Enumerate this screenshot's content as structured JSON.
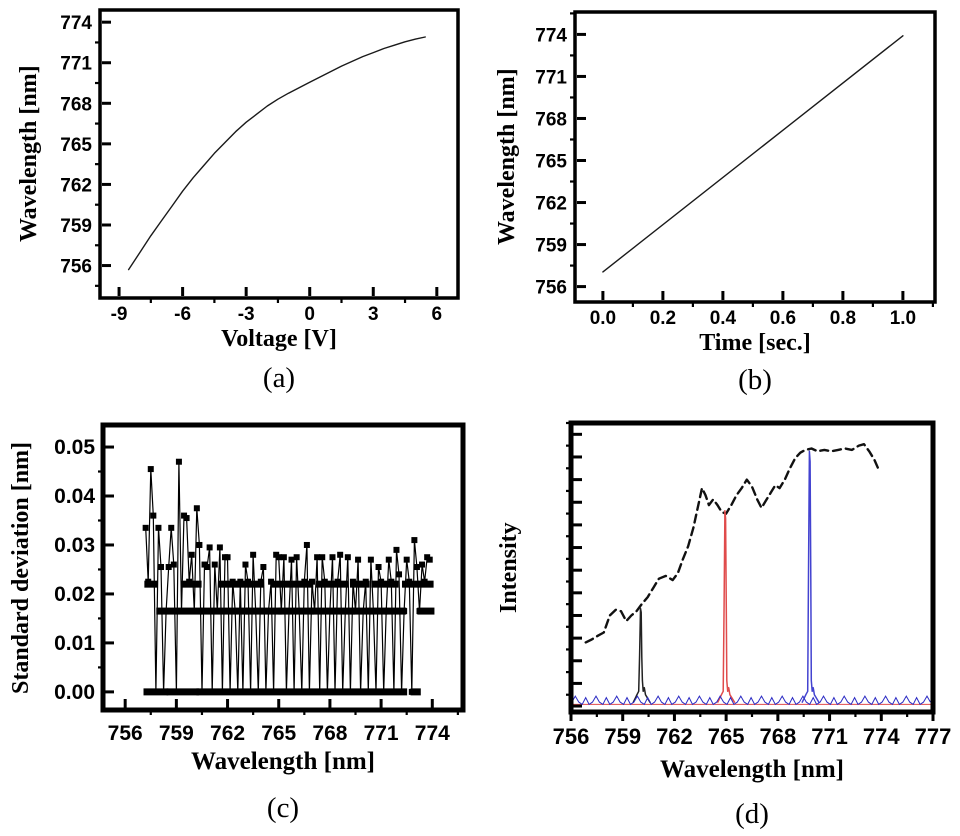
{
  "colors": {
    "axis": "#000000",
    "curve": "#1a1a1a",
    "dashed": "#111111",
    "red_peak": "#e04b4b",
    "blue_peak": "#4343d0",
    "noise_blue": "#2d2dc4"
  },
  "chart_data": [
    {
      "id": "a",
      "type": "line",
      "caption": "(a)",
      "xlabel": "Voltage [V]",
      "ylabel": "Wavelength  [nm]",
      "box": {
        "l": 100,
        "t": 10,
        "r": 458,
        "b": 298
      },
      "xlim": [
        -9.9,
        7.0
      ],
      "ylim": [
        753.6,
        774.9
      ],
      "tick_size": 19,
      "xlabel_dy": 22,
      "border": 3.5,
      "xticks": {
        "values": [
          -9,
          -6,
          -3,
          0,
          3,
          6
        ],
        "labels": [
          "-9",
          "-6",
          "-3",
          "0",
          "3",
          "6"
        ],
        "minor_step": 1.5
      },
      "yticks": {
        "values": [
          756,
          759,
          762,
          765,
          768,
          771,
          774
        ],
        "labels": [
          "756",
          "759",
          "762",
          "765",
          "768",
          "771",
          "774"
        ],
        "minor_step": 1.5
      },
      "series": [
        {
          "kind": "line",
          "name": "voltage-tuning-curve",
          "color": "#1a1a1a",
          "width": 1.4,
          "points": [
            [
              -8.55,
              755.7
            ],
            [
              -8.0,
              757.0
            ],
            [
              -7.5,
              758.2
            ],
            [
              -7.0,
              759.3
            ],
            [
              -6.5,
              760.4
            ],
            [
              -6.0,
              761.5
            ],
            [
              -5.5,
              762.5
            ],
            [
              -5.0,
              763.4
            ],
            [
              -4.5,
              764.3
            ],
            [
              -4.0,
              765.1
            ],
            [
              -3.5,
              765.9
            ],
            [
              -3.0,
              766.6
            ],
            [
              -2.5,
              767.2
            ],
            [
              -2.0,
              767.8
            ],
            [
              -1.5,
              768.3
            ],
            [
              -1.0,
              768.75
            ],
            [
              -0.5,
              769.15
            ],
            [
              0.0,
              769.55
            ],
            [
              0.5,
              769.95
            ],
            [
              1.0,
              770.35
            ],
            [
              1.5,
              770.75
            ],
            [
              2.0,
              771.1
            ],
            [
              2.5,
              771.45
            ],
            [
              3.0,
              771.75
            ],
            [
              3.5,
              772.05
            ],
            [
              4.0,
              772.3
            ],
            [
              4.5,
              772.55
            ],
            [
              5.0,
              772.75
            ],
            [
              5.45,
              772.9
            ]
          ]
        }
      ]
    },
    {
      "id": "b",
      "type": "line",
      "caption": "(b)",
      "xlabel": "Time  [sec.]",
      "ylabel": "Wavelength  [nm]",
      "box": {
        "l": 95,
        "t": 12,
        "r": 455,
        "b": 302
      },
      "xlim": [
        -0.093,
        1.107
      ],
      "ylim": [
        754.9,
        775.6
      ],
      "tick_size": 19,
      "xlabel_dy": 22,
      "border": 3.5,
      "xticks": {
        "values": [
          0.0,
          0.2,
          0.4,
          0.6,
          0.8,
          1.0
        ],
        "labels": [
          "0.0",
          "0.2",
          "0.4",
          "0.6",
          "0.8",
          "1.0"
        ],
        "minor_step": 0.1
      },
      "yticks": {
        "values": [
          756,
          759,
          762,
          765,
          768,
          771,
          774
        ],
        "labels": [
          "756",
          "759",
          "762",
          "765",
          "768",
          "771",
          "774"
        ],
        "minor_step": 1.5
      },
      "series": [
        {
          "kind": "line",
          "name": "time-sweep-line",
          "color": "#1a1a1a",
          "width": 1.4,
          "points": [
            [
              0.0,
              757.05
            ],
            [
              1.0,
              773.9
            ]
          ]
        }
      ]
    },
    {
      "id": "c",
      "type": "scatter-line",
      "caption": "(c)",
      "xlabel": "Wavelength  [nm]",
      "ylabel": "Standard deviation  [nm]",
      "box": {
        "l": 103,
        "t": 25,
        "r": 463,
        "b": 310
      },
      "xlim": [
        754.7,
        775.8
      ],
      "ylim": [
        -0.0037,
        0.0545
      ],
      "tick_size": 21,
      "xlabel_dy": 30,
      "border": 5,
      "xticks": {
        "values": [
          756,
          759,
          762,
          765,
          768,
          771,
          774
        ],
        "labels": [
          "756",
          "759",
          "762",
          "765",
          "768",
          "771",
          "774"
        ],
        "minor_step": 1.5
      },
      "yticks": {
        "values": [
          0.0,
          0.01,
          0.02,
          0.03,
          0.04,
          0.05
        ],
        "labels": [
          "0.00",
          "0.01",
          "0.02",
          "0.03",
          "0.04",
          "0.05"
        ],
        "minor_step": 0.005
      },
      "series": [
        {
          "kind": "comb",
          "name": "std-deviation-points",
          "color": "#000000",
          "width": 1.2,
          "marker_size": 6,
          "x_start": 757.2,
          "x_step": 0.15,
          "values": [
            0.0335,
            0.0225,
            0.0455,
            0.036,
            0,
            0.0335,
            0.0255,
            0,
            0.0165,
            0.0255,
            0.0335,
            0.026,
            0,
            0.047,
            0.0165,
            0.036,
            0.0355,
            0.0225,
            0.028,
            0.0165,
            0.0375,
            0.03,
            0,
            0.026,
            0.0255,
            0.0295,
            0,
            0.026,
            0.0165,
            0.0295,
            0,
            0.0275,
            0.0275,
            0,
            0.0225,
            0.0165,
            0,
            0.0225,
            0,
            0.026,
            0.0225,
            0,
            0.028,
            0.0165,
            0,
            0.0225,
            0.0255,
            0,
            0.0165,
            0.0225,
            0,
            0.028,
            0.0275,
            0.0165,
            0.0275,
            0,
            0.0165,
            0.027,
            0,
            0.0275,
            0.0165,
            0,
            0.0225,
            0.03,
            0,
            0.0225,
            0.0165,
            0.0275,
            0,
            0.0275,
            0.0225,
            0,
            0.0165,
            0.0275,
            0,
            0.0225,
            0.028,
            0,
            0.0165,
            0.0275,
            0,
            0.0225,
            0.0165,
            0.027,
            0,
            0.0165,
            0.0225,
            0,
            0.027,
            0.0165,
            0,
            0.0255,
            0.0225,
            0,
            0.0165,
            0.027,
            0.0225,
            0,
            0.029,
            0.024,
            0,
            0.0165,
            0.027,
            0.0225,
            0,
            0.031,
            0.0255,
            0.0165,
            0.026,
            0.0225,
            0.0275,
            0.027
          ]
        },
        {
          "kind": "rows",
          "name": "quantized-level-rows",
          "color": "#000000",
          "thickness": 7,
          "segments": [
            [
              757.25,
              758.35,
              0.0
            ],
            [
              758.6,
              760.15,
              0.0
            ],
            [
              760.35,
              772.35,
              0.0
            ],
            [
              772.9,
              773.15,
              0.0
            ],
            [
              758.0,
              760.35,
              0.0165
            ],
            [
              760.55,
              763.1,
              0.0165
            ],
            [
              763.25,
              765.0,
              0.0165
            ],
            [
              765.15,
              766.9,
              0.0165
            ],
            [
              767.05,
              769.3,
              0.0165
            ],
            [
              769.45,
              771.2,
              0.0165
            ],
            [
              771.4,
              772.3,
              0.0165
            ],
            [
              773.3,
              773.95,
              0.0165
            ],
            [
              757.3,
              757.75,
              0.022
            ],
            [
              759.45,
              760.3,
              0.022
            ],
            [
              761.65,
              763.95,
              0.022
            ],
            [
              764.75,
              766.85,
              0.022
            ],
            [
              767.35,
              768.9,
              0.022
            ],
            [
              769.35,
              770.15,
              0.022
            ],
            [
              770.6,
              771.85,
              0.022
            ],
            [
              772.4,
              773.05,
              0.022
            ],
            [
              773.35,
              773.9,
              0.022
            ]
          ]
        }
      ]
    },
    {
      "id": "d",
      "type": "spectra",
      "caption": "(d)",
      "xlabel": "Wavelength  [nm]",
      "ylabel": "Intensity",
      "box": {
        "l": 91,
        "t": 23,
        "r": 453,
        "b": 312
      },
      "xlim": [
        756,
        777
      ],
      "ylim": [
        -0.021,
        1.0
      ],
      "tick_size": 22,
      "xlabel_dy": 32,
      "border": 5,
      "xticks": {
        "values": [
          756,
          759,
          762,
          765,
          768,
          771,
          774,
          777
        ],
        "labels": [
          "756",
          "759",
          "762",
          "765",
          "768",
          "771",
          "774",
          "777"
        ],
        "minor_step": 1.5,
        "dir": "out"
      },
      "yticks": {
        "values": [
          0,
          0.08,
          0.16,
          0.24,
          0.32,
          0.4,
          0.48,
          0.56,
          0.64,
          0.72,
          0.8,
          0.88,
          0.96
        ],
        "labels": [],
        "minor_step": 0.04
      },
      "series": [
        {
          "kind": "line",
          "name": "ase-broadband-spectrum",
          "color": "#111111",
          "width": 2.4,
          "dash": "8 5",
          "points": [
            [
              756.85,
              0.225
            ],
            [
              757.2,
              0.235
            ],
            [
              757.6,
              0.25
            ],
            [
              757.9,
              0.26
            ],
            [
              758.25,
              0.32
            ],
            [
              758.6,
              0.34
            ],
            [
              758.9,
              0.335
            ],
            [
              759.2,
              0.3
            ],
            [
              759.5,
              0.32
            ],
            [
              759.8,
              0.335
            ],
            [
              760.1,
              0.36
            ],
            [
              760.45,
              0.385
            ],
            [
              760.8,
              0.42
            ],
            [
              761.1,
              0.45
            ],
            [
              761.5,
              0.46
            ],
            [
              761.9,
              0.445
            ],
            [
              762.2,
              0.47
            ],
            [
              762.5,
              0.52
            ],
            [
              762.8,
              0.565
            ],
            [
              763.1,
              0.63
            ],
            [
              763.35,
              0.7
            ],
            [
              763.6,
              0.77
            ],
            [
              763.8,
              0.745
            ],
            [
              764.0,
              0.71
            ],
            [
              764.25,
              0.73
            ],
            [
              764.5,
              0.71
            ],
            [
              764.75,
              0.685
            ],
            [
              765.0,
              0.68
            ],
            [
              765.3,
              0.71
            ],
            [
              765.6,
              0.745
            ],
            [
              765.9,
              0.77
            ],
            [
              766.2,
              0.8
            ],
            [
              766.5,
              0.775
            ],
            [
              766.8,
              0.73
            ],
            [
              767.05,
              0.7
            ],
            [
              767.3,
              0.725
            ],
            [
              767.6,
              0.755
            ],
            [
              767.85,
              0.78
            ],
            [
              768.1,
              0.77
            ],
            [
              768.4,
              0.8
            ],
            [
              768.7,
              0.84
            ],
            [
              769.0,
              0.875
            ],
            [
              769.3,
              0.895
            ],
            [
              769.6,
              0.905
            ],
            [
              769.95,
              0.91
            ],
            [
              770.3,
              0.9
            ],
            [
              770.7,
              0.905
            ],
            [
              771.1,
              0.9
            ],
            [
              771.5,
              0.905
            ],
            [
              771.9,
              0.91
            ],
            [
              772.3,
              0.905
            ],
            [
              772.7,
              0.92
            ],
            [
              773.0,
              0.925
            ],
            [
              773.3,
              0.9
            ],
            [
              773.6,
              0.87
            ],
            [
              773.85,
              0.835
            ]
          ]
        },
        {
          "kind": "line",
          "name": "red-baseline",
          "color": "#e04b4b",
          "width": 1,
          "points": [
            [
              756.1,
              0.006
            ],
            [
              776.9,
              0.006
            ]
          ]
        },
        {
          "kind": "peaks",
          "name": "laser-lines",
          "width": 1.5,
          "peaks": [
            {
              "center": 760.1,
              "height": 0.345,
              "color": "#222222"
            },
            {
              "center": 765.0,
              "height": 0.69,
              "color": "#e04b4b"
            },
            {
              "center": 769.9,
              "height": 0.9,
              "color": "#4343d0"
            }
          ]
        },
        {
          "kind": "noise",
          "name": "detector-noise-floor",
          "color": "#2d2dc4",
          "width": 1,
          "x_start": 756.05,
          "x_end": 776.95,
          "step": 0.2,
          "base": 0.01,
          "jitter": 0.004,
          "spike": 0.03,
          "spike_every": 3
        }
      ]
    }
  ]
}
